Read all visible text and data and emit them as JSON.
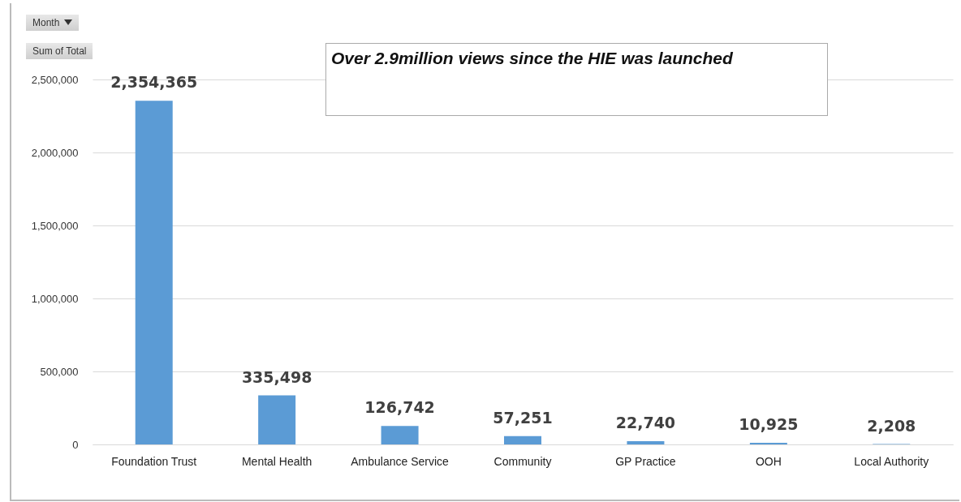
{
  "chart_data": {
    "type": "bar",
    "title": "Over 2.9million views since the HIE was launched",
    "annotations": [
      "Month",
      "Sum of Total"
    ],
    "categories": [
      "Foundation Trust",
      "Mental Health",
      "Ambulance Service",
      "Community",
      "GP Practice",
      "OOH",
      "Local Authority"
    ],
    "values": [
      2354365,
      335498,
      126742,
      57251,
      22740,
      10925,
      2208
    ],
    "value_labels": [
      "2,354,365",
      "335,498",
      "126,742",
      "57,251",
      "22,740",
      "10,925",
      "2,208"
    ],
    "color": "#5b9bd5",
    "ylim": [
      0,
      2500000
    ],
    "yticks": [
      0,
      {
        "value": 500000,
        "label": "500,000"
      },
      {
        "value": 1000000,
        "label": "1,000,000"
      },
      {
        "value": 1500000,
        "label": "1,500,000"
      },
      {
        "value": 2000000,
        "label": "2,000,000"
      },
      {
        "value": 2500000,
        "label": "2,500,000"
      }
    ],
    "grid": "y"
  }
}
